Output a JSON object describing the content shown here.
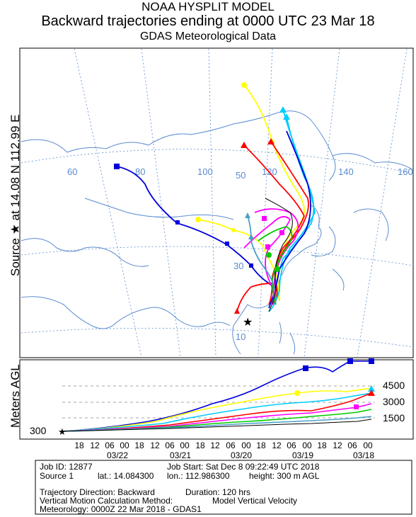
{
  "title": {
    "line1": "NOAA HYSPLIT MODEL",
    "line2": "Backward trajectories ending at 0000 UTC 23 Mar 18",
    "line3": "GDAS Meteorological Data"
  },
  "side_label": "Source ★ at 14.08 N 112.99 E",
  "vertical_label": "Meters AGL",
  "map": {
    "lon_labels": [
      "60",
      "80",
      "100",
      "120",
      "140",
      "160"
    ],
    "lat_labels": [
      "50",
      "30",
      "10"
    ],
    "colors": {
      "blue": "#0000dd",
      "yellow": "#ffff00",
      "red": "#ff0000",
      "cyan": "#00ccff",
      "magenta": "#ff00ff",
      "green": "#00cc00",
      "teal": "#4aa0c8",
      "coast": "#5a8bd0"
    }
  },
  "height_panel": {
    "y_labels": [
      "4500",
      "3000",
      "1500"
    ],
    "source_height_label": "300",
    "hour_labels": [
      "18",
      "12",
      "06",
      "00",
      "18",
      "12",
      "06",
      "00",
      "18",
      "12",
      "06",
      "00",
      "18",
      "12",
      "06",
      "00",
      "18",
      "12",
      "06",
      "00"
    ],
    "date_labels": [
      "03/22",
      "03/21",
      "03/20",
      "03/19",
      "03/18"
    ]
  },
  "info": {
    "job_id": "Job ID: 12877",
    "job_start": "Job Start: Sat Dec  8 09:22:49 UTC 2018",
    "source": "Source 1",
    "lat": "lat.: 14.084300",
    "lon": "lon.: 112.986300",
    "height": "height: 300 m AGL",
    "direction": "Trajectory Direction: Backward",
    "duration": "Duration: 120 hrs",
    "vertical_method": "Vertical Motion Calculation Method:",
    "vertical_method_value": "Model Vertical Velocity",
    "meteorology": "Meteorology: 0000Z 22 Mar 2018 - GDAS1"
  }
}
